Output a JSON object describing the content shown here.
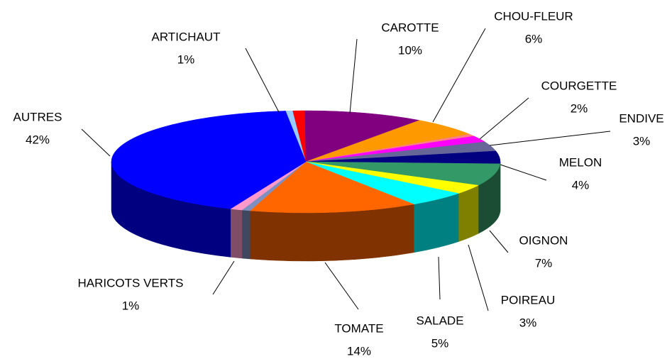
{
  "chart_data": {
    "type": "pie3d",
    "categories": [
      null,
      "ARTICHAUT",
      "CAROTTE",
      "CHOU-FLEUR",
      null,
      "COURGETTE",
      "ENDIVE",
      "MELON",
      "OIGNON",
      "POIREAU",
      "SALADE",
      "TOMATE",
      null,
      "HARICOTS VERTS",
      "AUTRES"
    ],
    "values": [
      0.6,
      1,
      10,
      6,
      0.7,
      2,
      3,
      4,
      7,
      3,
      5,
      14,
      0.7,
      1,
      42
    ],
    "value_labels": [
      null,
      "1%",
      "10%",
      "6%",
      null,
      "2%",
      "3%",
      "4%",
      "7%",
      "3%",
      "5%",
      "14%",
      null,
      "1%",
      "42%"
    ],
    "colors": [
      "#99ccff",
      "#ff0000",
      "#800080",
      "#ff9900",
      "#ff8080",
      "#ff00ff",
      "#666699",
      "#000080",
      "#339966",
      "#ffff00",
      "#00ffff",
      "#ff6600",
      "#7f8fbf",
      "#ff99cc",
      "#0000ff"
    ]
  }
}
